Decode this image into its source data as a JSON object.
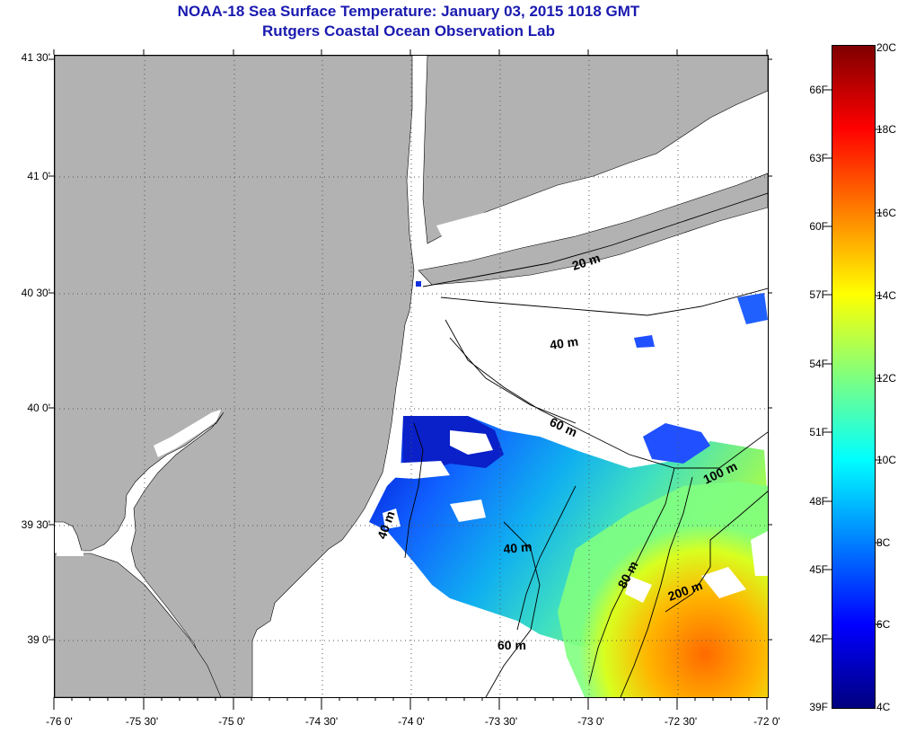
{
  "title": {
    "line1": "NOAA-18 Sea Surface Temperature:  January 03, 2015 1018 GMT",
    "line2": "Rutgers Coastal Ocean Observation Lab"
  },
  "map": {
    "lat_labels": [
      "41 30'",
      "41 0'",
      "40 30'",
      "40 0'",
      "39 30'",
      "39 0'"
    ],
    "lon_labels": [
      "-76 0'",
      "-75 30'",
      "-75 0'",
      "-74 30'",
      "-74 0'",
      "-73 30'",
      "-73 0'",
      "-72 30'",
      "-72 0'"
    ],
    "contour_labels": [
      "20 m",
      "40 m",
      "60 m",
      "100 m",
      "40 m",
      "80 m",
      "200 m",
      "60 m",
      "40 m"
    ],
    "land_color": "#b2b2b2",
    "cloud_color": "#ffffff"
  },
  "colorbar": {
    "fahrenheit_labels": [
      "66F",
      "63F",
      "60F",
      "57F",
      "54F",
      "51F",
      "48F",
      "45F",
      "42F",
      "39F"
    ],
    "celsius_labels": [
      "20C",
      "18C",
      "16C",
      "14C",
      "12C",
      "10C",
      "8C",
      "6C",
      "4C"
    ],
    "range_c": [
      4,
      20
    ],
    "colormap": [
      "#00007f",
      "#0000ff",
      "#007fff",
      "#00ffff",
      "#7fff7f",
      "#ffff00",
      "#ff7f00",
      "#ff0000",
      "#7f0000"
    ]
  }
}
